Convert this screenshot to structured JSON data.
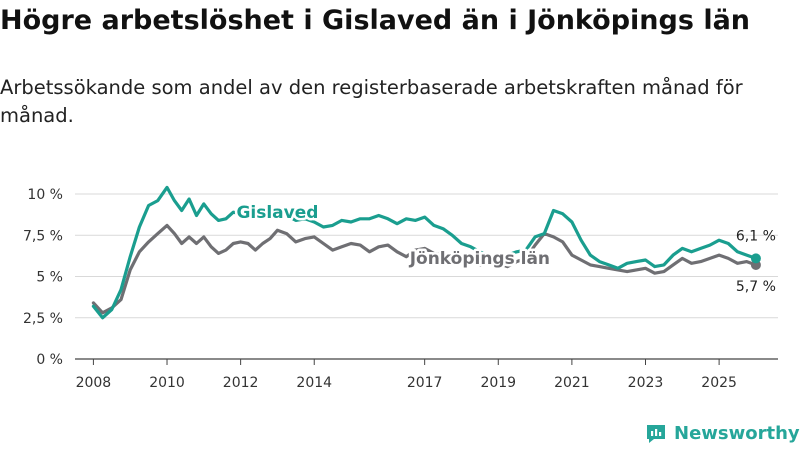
{
  "header": {
    "title": "Högre arbetslöshet i Gislaved än i Jönköpings län",
    "subtitle": "Arbetssökande som andel av den registerbaserade arbetskraften månad för månad."
  },
  "footer": {
    "brand": "Newsworthy"
  },
  "chart_data": {
    "type": "line",
    "title": "Högre arbetslöshet i Gislaved än i Jönköpings län",
    "subtitle": "Arbetssökande som andel av den registerbaserade arbetskraften månad för månad.",
    "xlabel": "",
    "ylabel": "",
    "xlim": [
      2007.5,
      2026.6
    ],
    "ylim": [
      0,
      10
    ],
    "grid": true,
    "y_ticks": [
      0,
      2.5,
      5,
      7.5,
      10
    ],
    "y_tick_labels": [
      "0 %",
      "2,5 %",
      "5 %",
      "7,5 %",
      "10 %"
    ],
    "x_ticks": [
      2008,
      2010,
      2012,
      2014,
      2017,
      2019,
      2021,
      2023,
      2025
    ],
    "x_tick_labels": [
      "2008",
      "2010",
      "2012",
      "2014",
      "2017",
      "2019",
      "2021",
      "2023",
      "2025"
    ],
    "series": [
      {
        "name": "Gislaved",
        "color": "#1a9e8f",
        "end_label": "6,1 %",
        "x": [
          2008.0,
          2008.25,
          2008.5,
          2008.75,
          2009.0,
          2009.25,
          2009.5,
          2009.75,
          2010.0,
          2010.2,
          2010.4,
          2010.6,
          2010.8,
          2011.0,
          2011.2,
          2011.4,
          2011.6,
          2011.8,
          2012.0,
          2012.2,
          2012.4,
          2012.6,
          2012.8,
          2013.0,
          2013.25,
          2013.5,
          2013.75,
          2014.0,
          2014.25,
          2014.5,
          2014.75,
          2015.0,
          2015.25,
          2015.5,
          2015.75,
          2016.0,
          2016.25,
          2016.5,
          2016.75,
          2017.0,
          2017.25,
          2017.5,
          2017.75,
          2018.0,
          2018.25,
          2018.5,
          2018.75,
          2019.0,
          2019.25,
          2019.5,
          2019.75,
          2020.0,
          2020.25,
          2020.5,
          2020.75,
          2021.0,
          2021.25,
          2021.5,
          2021.75,
          2022.0,
          2022.25,
          2022.5,
          2022.75,
          2023.0,
          2023.25,
          2023.5,
          2023.75,
          2024.0,
          2024.25,
          2024.5,
          2024.75,
          2025.0,
          2025.25,
          2025.5,
          2025.75,
          2026.0
        ],
        "values": [
          3.2,
          2.5,
          3.0,
          4.2,
          6.2,
          8.0,
          9.3,
          9.6,
          10.4,
          9.6,
          9.0,
          9.7,
          8.7,
          9.4,
          8.8,
          8.4,
          8.5,
          8.9,
          8.8,
          8.6,
          9.0,
          8.8,
          8.9,
          8.8,
          8.7,
          8.4,
          8.5,
          8.3,
          8.0,
          8.1,
          8.4,
          8.3,
          8.5,
          8.5,
          8.7,
          8.5,
          8.2,
          8.5,
          8.4,
          8.6,
          8.1,
          7.9,
          7.5,
          7.0,
          6.8,
          6.5,
          6.2,
          6.2,
          6.3,
          6.5,
          6.6,
          7.4,
          7.6,
          9.0,
          8.8,
          8.3,
          7.2,
          6.3,
          5.9,
          5.7,
          5.5,
          5.8,
          5.9,
          6.0,
          5.6,
          5.7,
          6.3,
          6.7,
          6.5,
          6.7,
          6.9,
          7.2,
          7.0,
          6.5,
          6.3,
          6.1
        ]
      },
      {
        "name": "Jönköpings län",
        "color": "#6f6f73",
        "end_label": "5,7 %",
        "x": [
          2008.0,
          2008.25,
          2008.5,
          2008.75,
          2009.0,
          2009.25,
          2009.5,
          2009.75,
          2010.0,
          2010.2,
          2010.4,
          2010.6,
          2010.8,
          2011.0,
          2011.2,
          2011.4,
          2011.6,
          2011.8,
          2012.0,
          2012.2,
          2012.4,
          2012.6,
          2012.8,
          2013.0,
          2013.25,
          2013.5,
          2013.75,
          2014.0,
          2014.25,
          2014.5,
          2014.75,
          2015.0,
          2015.25,
          2015.5,
          2015.75,
          2016.0,
          2016.25,
          2016.5,
          2016.75,
          2017.0,
          2017.25,
          2017.5,
          2017.75,
          2018.0,
          2018.25,
          2018.5,
          2018.75,
          2019.0,
          2019.25,
          2019.5,
          2019.75,
          2020.0,
          2020.25,
          2020.5,
          2020.75,
          2021.0,
          2021.25,
          2021.5,
          2021.75,
          2022.0,
          2022.25,
          2022.5,
          2022.75,
          2023.0,
          2023.25,
          2023.5,
          2023.75,
          2024.0,
          2024.25,
          2024.5,
          2024.75,
          2025.0,
          2025.25,
          2025.5,
          2025.75,
          2026.0
        ],
        "values": [
          3.4,
          2.8,
          3.1,
          3.6,
          5.4,
          6.5,
          7.1,
          7.6,
          8.1,
          7.6,
          7.0,
          7.4,
          7.0,
          7.4,
          6.8,
          6.4,
          6.6,
          7.0,
          7.1,
          7.0,
          6.6,
          7.0,
          7.3,
          7.8,
          7.6,
          7.1,
          7.3,
          7.4,
          7.0,
          6.6,
          6.8,
          7.0,
          6.9,
          6.5,
          6.8,
          6.9,
          6.5,
          6.2,
          6.6,
          6.7,
          6.4,
          6.3,
          6.1,
          6.3,
          6.0,
          5.7,
          5.8,
          5.8,
          5.6,
          5.9,
          6.1,
          6.9,
          7.6,
          7.4,
          7.1,
          6.3,
          6.0,
          5.7,
          5.6,
          5.5,
          5.4,
          5.3,
          5.4,
          5.5,
          5.2,
          5.3,
          5.7,
          6.1,
          5.8,
          5.9,
          6.1,
          6.3,
          6.1,
          5.8,
          5.9,
          5.7
        ]
      }
    ]
  }
}
